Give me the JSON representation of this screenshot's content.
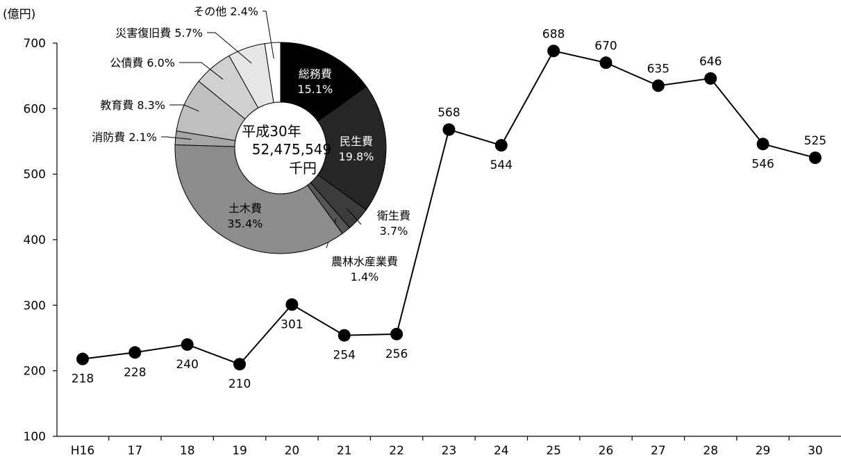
{
  "chart_data": [
    {
      "type": "line",
      "ylabel": "(億円)",
      "categories": [
        "H16",
        "17",
        "18",
        "19",
        "20",
        "21",
        "22",
        "23",
        "24",
        "25",
        "26",
        "27",
        "28",
        "29",
        "30"
      ],
      "values": [
        218,
        228,
        240,
        210,
        301,
        254,
        256,
        568,
        544,
        688,
        670,
        635,
        646,
        546,
        525
      ],
      "label_position": [
        "below",
        "below",
        "below",
        "below",
        "below",
        "below",
        "below",
        "above",
        "below",
        "above",
        "above",
        "above",
        "above",
        "below",
        "above"
      ],
      "ylim": [
        100,
        700
      ],
      "yticks": [
        100,
        200,
        300,
        400,
        500,
        600,
        700
      ],
      "grid": false,
      "colors": {
        "line": "#000000",
        "marker": "#000000"
      }
    },
    {
      "type": "pie",
      "donut": true,
      "center_text": [
        "平成30年",
        "52,475,549",
        "千円"
      ],
      "slices": [
        {
          "name": "総務費",
          "value": 15.1,
          "pct_label": "15.1%",
          "color": "#000000",
          "text_color": "#ffffff",
          "label_inside": true
        },
        {
          "name": "民生費",
          "value": 19.8,
          "pct_label": "19.8%",
          "color": "#262626",
          "text_color": "#ffffff",
          "label_inside": true
        },
        {
          "name": "衛生費",
          "value": 3.7,
          "pct_label": "3.7%",
          "color": "#3c3c3c",
          "text_color": "#000000",
          "label_inside": false
        },
        {
          "name": "農林水産業費",
          "value": 1.4,
          "pct_label": "1.4%",
          "color": "#555555",
          "text_color": "#000000",
          "label_inside": false
        },
        {
          "name": "土木費",
          "value": 35.4,
          "pct_label": "35.4%",
          "color": "#8c8c8c",
          "text_color": "#000000",
          "label_inside": true
        },
        {
          "name": "消防費",
          "value": 2.1,
          "pct_label": "2.1%",
          "color": "#a6a6a6",
          "text_color": "#000000",
          "label_inside": false
        },
        {
          "name": "教育費",
          "value": 8.3,
          "pct_label": "8.3%",
          "color": "#bfbfbf",
          "text_color": "#000000",
          "label_inside": false
        },
        {
          "name": "公債費",
          "value": 6.0,
          "pct_label": "6.0%",
          "color": "#d0d0d0",
          "text_color": "#000000",
          "label_inside": false
        },
        {
          "name": "災害復旧費",
          "value": 5.7,
          "pct_label": "5.7%",
          "color": "#e6e6e6",
          "text_color": "#000000",
          "label_inside": false
        },
        {
          "name": "その他",
          "value": 2.4,
          "pct_label": "2.4%",
          "color": "#ffffff",
          "text_color": "#000000",
          "label_inside": false
        }
      ]
    }
  ]
}
